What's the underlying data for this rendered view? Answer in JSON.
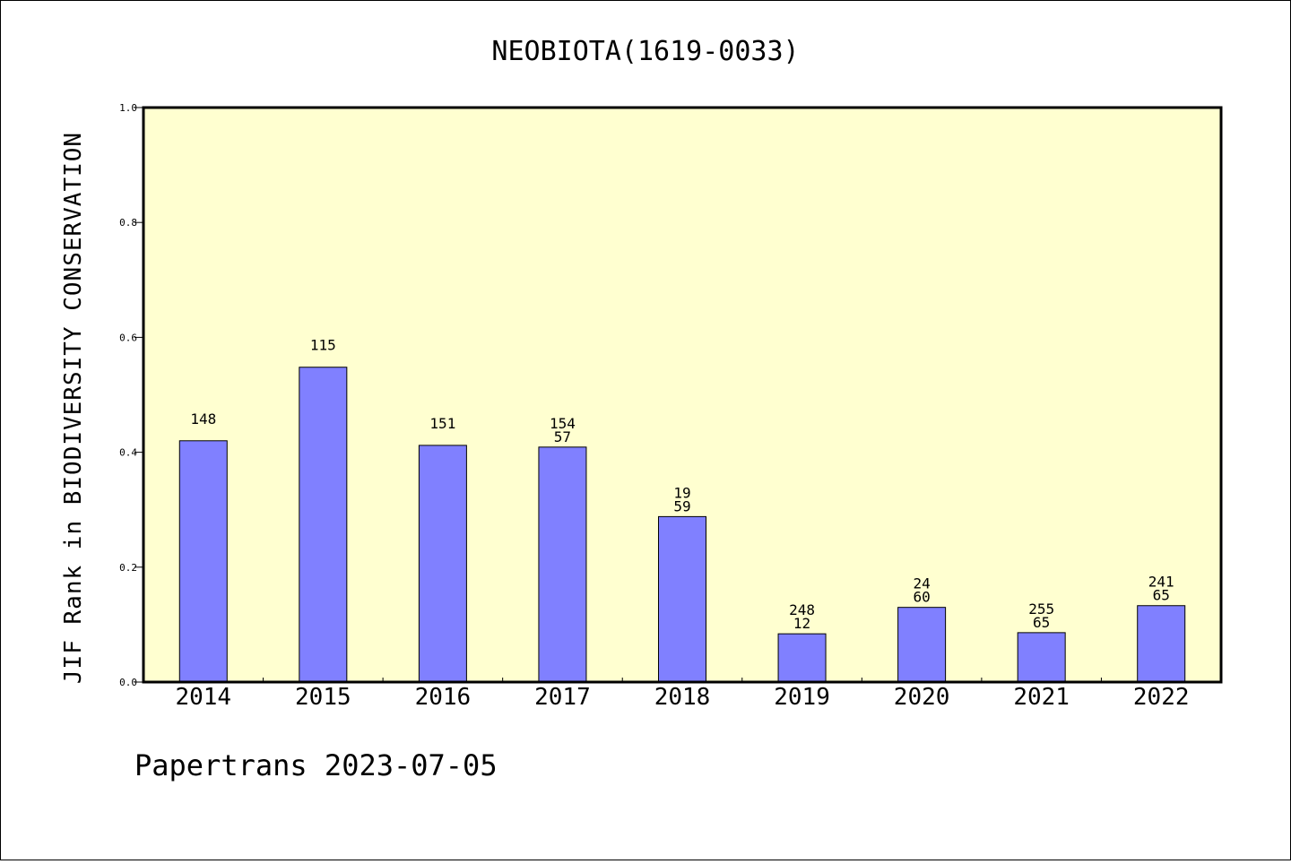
{
  "chart_data": {
    "type": "bar",
    "title": "NEOBIOTA(1619-0033)",
    "xlabel": "",
    "ylabel": "JIF Rank in BIODIVERSITY CONSERVATION",
    "ylim": [
      0,
      1.0
    ],
    "yticks": [
      "0.0",
      "0.2",
      "0.4",
      "0.6",
      "0.8",
      "1.0"
    ],
    "categories": [
      "2014",
      "2015",
      "2016",
      "2017",
      "2018",
      "2019",
      "2020",
      "2021",
      "2022"
    ],
    "values": [
      0.42,
      0.548,
      0.412,
      0.409,
      0.288,
      0.084,
      0.13,
      0.086,
      0.133
    ],
    "bar_labels": [
      [
        "148"
      ],
      [
        "115"
      ],
      [
        "151"
      ],
      [
        "154",
        "57"
      ],
      [
        "19",
        "59"
      ],
      [
        "248",
        "12"
      ],
      [
        "24",
        "60"
      ],
      [
        "255",
        "65"
      ],
      [
        "241",
        "65"
      ]
    ],
    "colors": {
      "bar": "#8080ff",
      "plot_background": "#ffffd0"
    },
    "grid": false,
    "legend": "none"
  },
  "footer": "Papertrans 2023-07-05"
}
